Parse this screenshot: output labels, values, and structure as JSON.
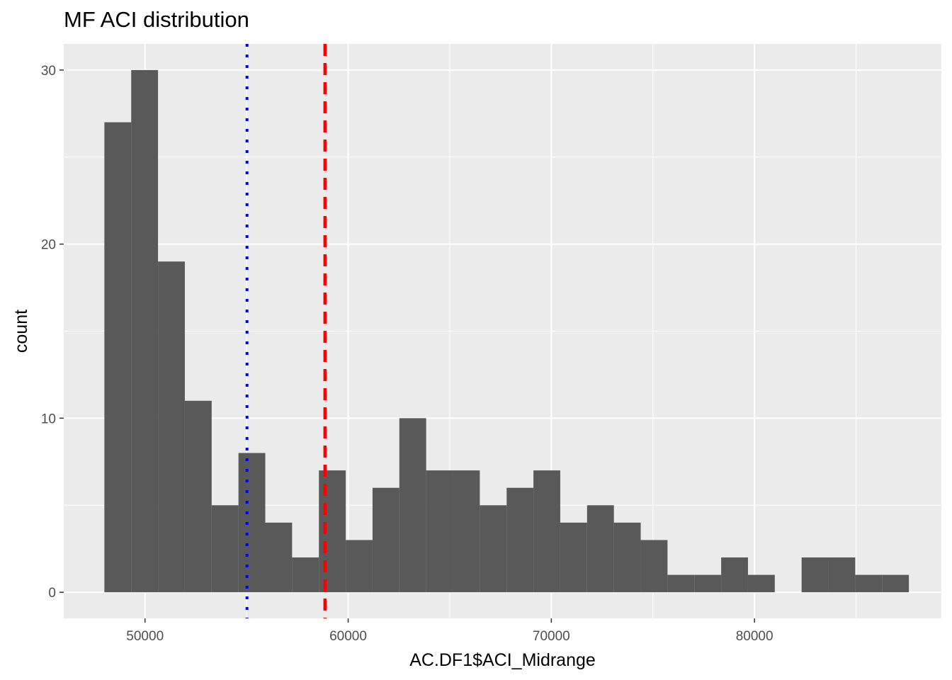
{
  "chart_data": {
    "type": "bar",
    "subtype": "histogram",
    "title": "MF ACI distribution",
    "xlabel": "AC.DF1$ACI_Midrange",
    "ylabel": "count",
    "xlim": [
      46000,
      89200
    ],
    "ylim": [
      -1.5,
      31.5
    ],
    "x_ticks": [
      50000,
      60000,
      70000,
      80000
    ],
    "x_tick_labels": [
      "50000",
      "60000",
      "70000",
      "80000"
    ],
    "y_ticks": [
      0,
      10,
      20,
      30
    ],
    "y_tick_labels": [
      "0",
      "10",
      "20",
      "30"
    ],
    "grid": true,
    "bins": [
      {
        "x0": 48000,
        "x1": 49320,
        "count": 27
      },
      {
        "x0": 49320,
        "x1": 50640,
        "count": 30
      },
      {
        "x0": 50640,
        "x1": 51960,
        "count": 19
      },
      {
        "x0": 51960,
        "x1": 53280,
        "count": 11
      },
      {
        "x0": 53280,
        "x1": 54600,
        "count": 5
      },
      {
        "x0": 54600,
        "x1": 55920,
        "count": 8
      },
      {
        "x0": 55920,
        "x1": 57240,
        "count": 4
      },
      {
        "x0": 57240,
        "x1": 58560,
        "count": 2
      },
      {
        "x0": 58560,
        "x1": 59880,
        "count": 7
      },
      {
        "x0": 59880,
        "x1": 61200,
        "count": 3
      },
      {
        "x0": 61200,
        "x1": 62520,
        "count": 6
      },
      {
        "x0": 62520,
        "x1": 63840,
        "count": 10
      },
      {
        "x0": 63840,
        "x1": 65160,
        "count": 7
      },
      {
        "x0": 65160,
        "x1": 66480,
        "count": 7
      },
      {
        "x0": 66480,
        "x1": 67800,
        "count": 5
      },
      {
        "x0": 67800,
        "x1": 69120,
        "count": 6
      },
      {
        "x0": 69120,
        "x1": 70440,
        "count": 7
      },
      {
        "x0": 70440,
        "x1": 71760,
        "count": 4
      },
      {
        "x0": 71760,
        "x1": 73080,
        "count": 5
      },
      {
        "x0": 73080,
        "x1": 74400,
        "count": 4
      },
      {
        "x0": 74400,
        "x1": 75720,
        "count": 3
      },
      {
        "x0": 75720,
        "x1": 77040,
        "count": 1
      },
      {
        "x0": 77040,
        "x1": 78360,
        "count": 1
      },
      {
        "x0": 78360,
        "x1": 79680,
        "count": 2
      },
      {
        "x0": 79680,
        "x1": 81000,
        "count": 1
      },
      {
        "x0": 81000,
        "x1": 82320,
        "count": 0
      },
      {
        "x0": 82320,
        "x1": 83640,
        "count": 2
      },
      {
        "x0": 83640,
        "x1": 84960,
        "count": 2
      },
      {
        "x0": 84960,
        "x1": 86280,
        "count": 1
      },
      {
        "x0": 86280,
        "x1": 87600,
        "count": 1
      }
    ],
    "reference_lines": [
      {
        "x": 55020,
        "style": "dotted",
        "color": "#0000ff"
      },
      {
        "x": 58860,
        "style": "dashed",
        "color": "#ff0000"
      }
    ],
    "colors": {
      "bar": "#595959",
      "panel": "#ebebeb",
      "grid": "#ffffff",
      "tick_label": "#4d4d4d",
      "tick_mark": "#333333"
    }
  }
}
